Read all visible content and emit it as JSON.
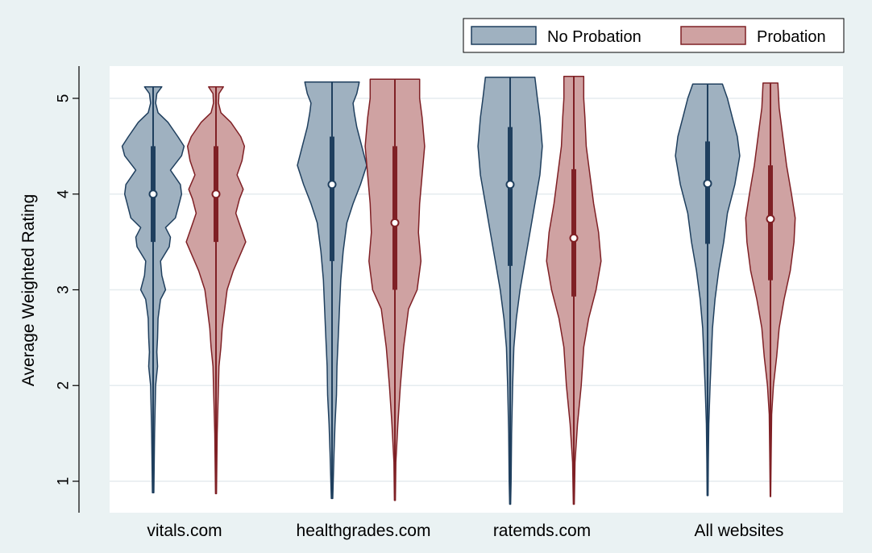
{
  "chart_data": {
    "type": "violin",
    "title": "",
    "xlabel": "",
    "ylabel": "Average Weighted Rating",
    "ylim": [
      0.7,
      5.35
    ],
    "yticks": [
      1,
      2,
      3,
      4,
      5
    ],
    "grid": true,
    "legend_position": "top-right",
    "categories": [
      "vitals.com",
      "healthgrades.com",
      "ratemds.com",
      "All websites"
    ],
    "series": [
      {
        "name": "No Probation",
        "color": "#9fb1c0",
        "edge_color": "#1f3f5e",
        "groups": [
          {
            "category": "vitals.com",
            "min": 0.88,
            "q1": 3.5,
            "median": 4.0,
            "q3": 4.5,
            "max": 5.12,
            "density": [
              [
                0.88,
                0.003
              ],
              [
                1.5,
                0.006
              ],
              [
                2.0,
                0.01
              ],
              [
                2.2,
                0.018
              ],
              [
                2.35,
                0.015
              ],
              [
                2.5,
                0.018
              ],
              [
                2.7,
                0.02
              ],
              [
                2.9,
                0.03
              ],
              [
                3.0,
                0.05
              ],
              [
                3.15,
                0.035
              ],
              [
                3.3,
                0.03
              ],
              [
                3.45,
                0.065
              ],
              [
                3.55,
                0.07
              ],
              [
                3.65,
                0.05
              ],
              [
                3.75,
                0.09
              ],
              [
                3.9,
                0.105
              ],
              [
                4.0,
                0.115
              ],
              [
                4.1,
                0.11
              ],
              [
                4.25,
                0.07
              ],
              [
                4.4,
                0.115
              ],
              [
                4.5,
                0.125
              ],
              [
                4.6,
                0.1
              ],
              [
                4.75,
                0.06
              ],
              [
                4.85,
                0.02
              ],
              [
                4.95,
                0.01
              ],
              [
                5.05,
                0.015
              ],
              [
                5.12,
                0.035
              ]
            ]
          },
          {
            "category": "healthgrades.com",
            "min": 0.82,
            "q1": 3.3,
            "median": 4.1,
            "q3": 4.6,
            "max": 5.17,
            "density": [
              [
                0.82,
                0.003
              ],
              [
                1.0,
                0.005
              ],
              [
                1.3,
                0.008
              ],
              [
                1.6,
                0.012
              ],
              [
                1.9,
                0.018
              ],
              [
                2.2,
                0.02
              ],
              [
                2.5,
                0.025
              ],
              [
                2.8,
                0.03
              ],
              [
                3.1,
                0.035
              ],
              [
                3.4,
                0.045
              ],
              [
                3.7,
                0.06
              ],
              [
                3.9,
                0.085
              ],
              [
                4.1,
                0.115
              ],
              [
                4.3,
                0.14
              ],
              [
                4.5,
                0.12
              ],
              [
                4.7,
                0.1
              ],
              [
                4.85,
                0.09
              ],
              [
                4.95,
                0.085
              ],
              [
                5.05,
                0.1
              ],
              [
                5.17,
                0.11
              ]
            ]
          },
          {
            "category": "ratemds.com",
            "min": 0.76,
            "q1": 3.25,
            "median": 4.1,
            "q3": 4.7,
            "max": 5.22,
            "density": [
              [
                0.76,
                0.002
              ],
              [
                1.0,
                0.004
              ],
              [
                1.5,
                0.006
              ],
              [
                2.0,
                0.01
              ],
              [
                2.4,
                0.015
              ],
              [
                2.7,
                0.025
              ],
              [
                3.0,
                0.04
              ],
              [
                3.3,
                0.06
              ],
              [
                3.6,
                0.08
              ],
              [
                3.9,
                0.1
              ],
              [
                4.2,
                0.12
              ],
              [
                4.5,
                0.13
              ],
              [
                4.8,
                0.12
              ],
              [
                5.0,
                0.11
              ],
              [
                5.22,
                0.1
              ]
            ]
          },
          {
            "category": "All websites",
            "min": 0.85,
            "q1": 3.48,
            "median": 4.11,
            "q3": 4.55,
            "max": 5.15,
            "density": [
              [
                0.85,
                0.002
              ],
              [
                1.2,
                0.003
              ],
              [
                1.6,
                0.005
              ],
              [
                2.0,
                0.01
              ],
              [
                2.3,
                0.015
              ],
              [
                2.6,
                0.02
              ],
              [
                2.9,
                0.03
              ],
              [
                3.2,
                0.045
              ],
              [
                3.5,
                0.065
              ],
              [
                3.8,
                0.08
              ],
              [
                4.1,
                0.11
              ],
              [
                4.4,
                0.13
              ],
              [
                4.6,
                0.12
              ],
              [
                4.8,
                0.1
              ],
              [
                5.0,
                0.08
              ],
              [
                5.15,
                0.06
              ]
            ]
          }
        ]
      },
      {
        "name": "Probation",
        "color": "#cfa2a2",
        "edge_color": "#7f2025",
        "groups": [
          {
            "category": "vitals.com",
            "min": 0.87,
            "q1": 3.5,
            "median": 4.0,
            "q3": 4.5,
            "max": 5.12,
            "density": [
              [
                0.87,
                0.002
              ],
              [
                1.5,
                0.005
              ],
              [
                2.0,
                0.01
              ],
              [
                2.2,
                0.012
              ],
              [
                2.4,
                0.02
              ],
              [
                2.6,
                0.025
              ],
              [
                2.8,
                0.035
              ],
              [
                3.0,
                0.045
              ],
              [
                3.2,
                0.07
              ],
              [
                3.35,
                0.095
              ],
              [
                3.5,
                0.12
              ],
              [
                3.65,
                0.1
              ],
              [
                3.8,
                0.08
              ],
              [
                3.95,
                0.095
              ],
              [
                4.05,
                0.11
              ],
              [
                4.2,
                0.085
              ],
              [
                4.35,
                0.105
              ],
              [
                4.5,
                0.115
              ],
              [
                4.6,
                0.1
              ],
              [
                4.75,
                0.06
              ],
              [
                4.85,
                0.02
              ],
              [
                4.95,
                0.01
              ],
              [
                5.05,
                0.012
              ],
              [
                5.12,
                0.03
              ]
            ]
          },
          {
            "category": "healthgrades.com",
            "min": 0.8,
            "q1": 3.0,
            "median": 3.7,
            "q3": 4.5,
            "max": 5.2,
            "density": [
              [
                0.8,
                0.002
              ],
              [
                1.2,
                0.004
              ],
              [
                1.6,
                0.012
              ],
              [
                2.0,
                0.022
              ],
              [
                2.4,
                0.035
              ],
              [
                2.8,
                0.055
              ],
              [
                3.0,
                0.09
              ],
              [
                3.3,
                0.105
              ],
              [
                3.6,
                0.095
              ],
              [
                3.9,
                0.1
              ],
              [
                4.2,
                0.11
              ],
              [
                4.5,
                0.12
              ],
              [
                4.8,
                0.11
              ],
              [
                5.0,
                0.1
              ],
              [
                5.2,
                0.1
              ]
            ]
          },
          {
            "category": "ratemds.com",
            "min": 0.76,
            "q1": 2.93,
            "median": 3.54,
            "q3": 4.26,
            "max": 5.23,
            "density": [
              [
                0.76,
                0.002
              ],
              [
                1.2,
                0.005
              ],
              [
                1.6,
                0.015
              ],
              [
                2.0,
                0.03
              ],
              [
                2.4,
                0.04
              ],
              [
                2.7,
                0.06
              ],
              [
                3.0,
                0.09
              ],
              [
                3.3,
                0.11
              ],
              [
                3.6,
                0.1
              ],
              [
                3.9,
                0.08
              ],
              [
                4.2,
                0.065
              ],
              [
                4.5,
                0.05
              ],
              [
                4.8,
                0.045
              ],
              [
                5.0,
                0.04
              ],
              [
                5.23,
                0.04
              ]
            ]
          },
          {
            "category": "All websites",
            "min": 0.84,
            "q1": 3.1,
            "median": 3.74,
            "q3": 4.3,
            "max": 5.16,
            "density": [
              [
                0.84,
                0.001
              ],
              [
                1.3,
                0.003
              ],
              [
                1.7,
                0.005
              ],
              [
                2.0,
                0.012
              ],
              [
                2.3,
                0.025
              ],
              [
                2.6,
                0.035
              ],
              [
                2.9,
                0.055
              ],
              [
                3.2,
                0.08
              ],
              [
                3.5,
                0.095
              ],
              [
                3.75,
                0.1
              ],
              [
                4.0,
                0.085
              ],
              [
                4.3,
                0.065
              ],
              [
                4.6,
                0.05
              ],
              [
                4.9,
                0.035
              ],
              [
                5.16,
                0.03
              ]
            ]
          }
        ]
      }
    ]
  }
}
